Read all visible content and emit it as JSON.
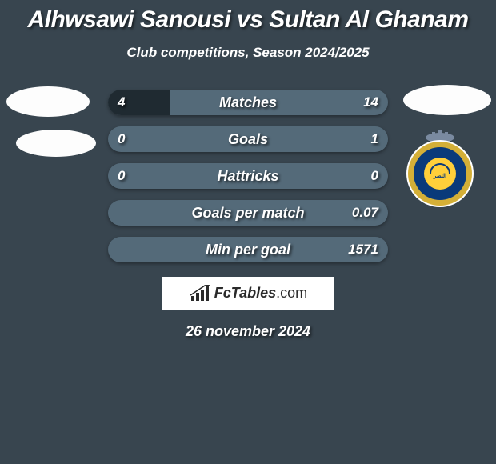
{
  "background_color": "#38454f",
  "text_color": "#ffffff",
  "title": {
    "text": "Alhwsawi Sanousi vs Sultan Al Ghanam",
    "fontsize": 30
  },
  "subtitle": {
    "text": "Club competitions, Season 2024/2025",
    "fontsize": 17
  },
  "bars": {
    "bar_bg_color": "#546a79",
    "fill_color": "#1f2a31",
    "label_fontsize": 18,
    "value_fontsize": 17,
    "rows": [
      {
        "label": "Matches",
        "left": "4",
        "right": "14",
        "left_pct": 22,
        "right_pct": 0
      },
      {
        "label": "Goals",
        "left": "0",
        "right": "1",
        "left_pct": 0,
        "right_pct": 0
      },
      {
        "label": "Hattricks",
        "left": "0",
        "right": "0",
        "left_pct": 0,
        "right_pct": 0
      },
      {
        "label": "Goals per match",
        "left": "",
        "right": "0.07",
        "left_pct": 0,
        "right_pct": 0
      },
      {
        "label": "Min per goal",
        "left": "",
        "right": "1571",
        "left_pct": 0,
        "right_pct": 0
      }
    ]
  },
  "logo": {
    "brand": "FcTables",
    "suffix": ".com"
  },
  "date": {
    "text": "26 november 2024",
    "fontsize": 18
  },
  "crest": {
    "ring_color": "#d4af37",
    "inner_color": "#0a3a7a",
    "ball_color": "#ffcf3a",
    "crown_color": "#7a8aa0"
  }
}
